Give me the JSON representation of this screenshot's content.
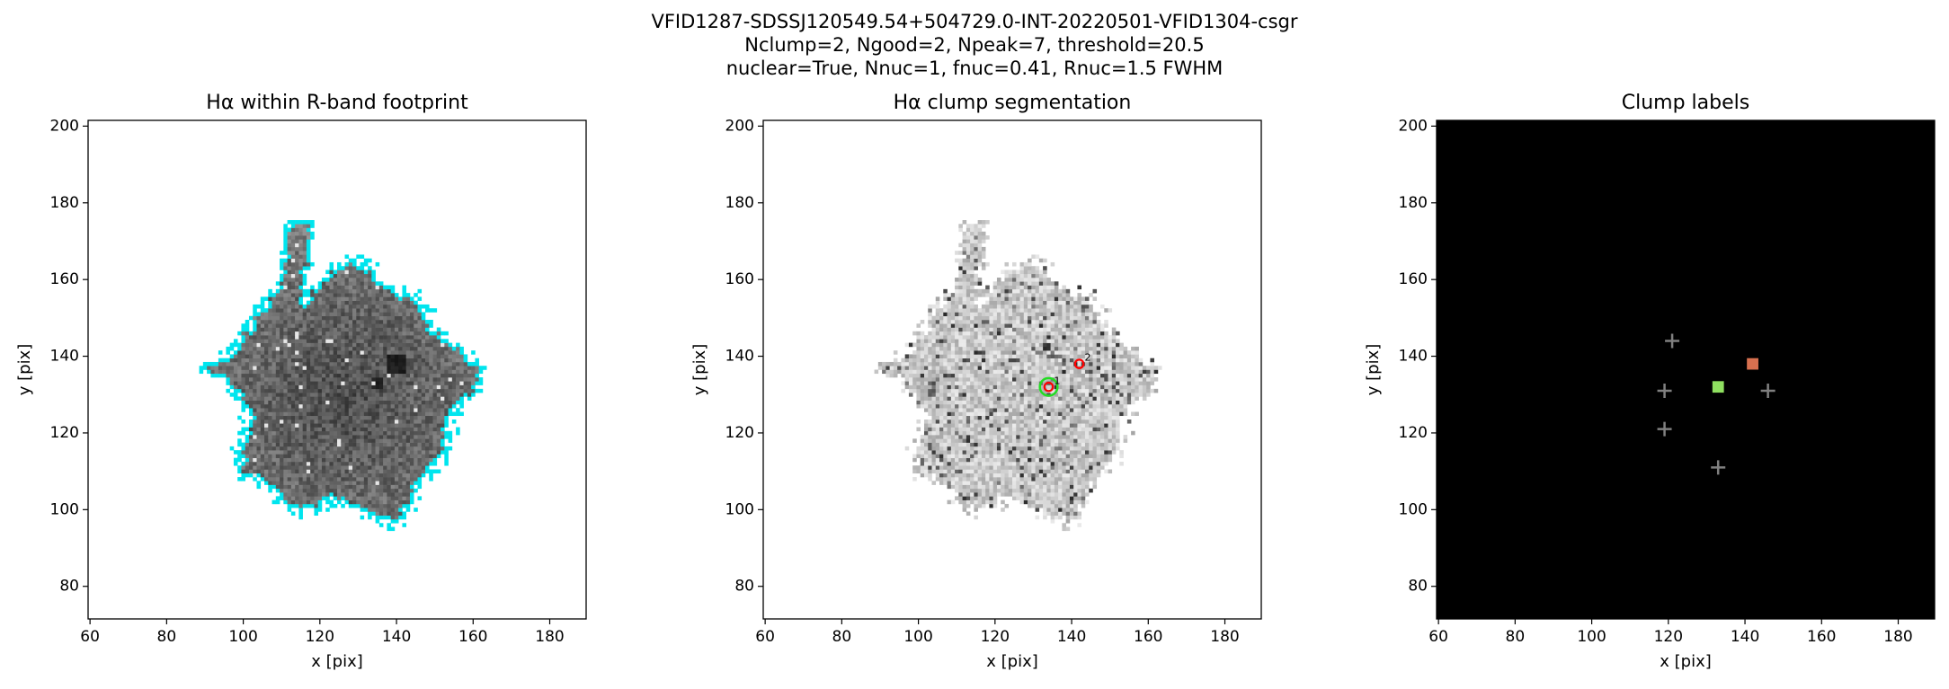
{
  "title": [
    "VFID1287-SDSSJ120549.54+504729.0-INT-20220501-VFID1304-csgr",
    "Nclump=2, Ngood=2, Npeak=7, threshold=20.5",
    "nuclear=True, Nnuc=1, fnuc=0.41, Rnuc=1.5 FWHM"
  ],
  "chart_data": [
    {
      "type": "image",
      "title": "Hα within R-band footprint",
      "xlabel": "x [pix]",
      "ylabel": "y [pix]",
      "xlim": [
        59.5,
        189.5
      ],
      "ylim": [
        71.5,
        201.5
      ],
      "xticks": [
        60,
        80,
        100,
        120,
        140,
        160,
        180
      ],
      "yticks": [
        80,
        100,
        120,
        140,
        160,
        180,
        200
      ],
      "background": "#ffffff",
      "tone": "dark",
      "contour_color": "#00e5ee"
    },
    {
      "type": "image",
      "title": "Hα clump segmentation",
      "xlabel": "x [pix]",
      "ylabel": "y [pix]",
      "xlim": [
        59.5,
        189.5
      ],
      "ylim": [
        71.5,
        201.5
      ],
      "xticks": [
        60,
        80,
        100,
        120,
        140,
        160,
        180
      ],
      "yticks": [
        80,
        100,
        120,
        140,
        160,
        180,
        200
      ],
      "background": "#ffffff",
      "tone": "light",
      "clumps": {
        "x": [
          134,
          142
        ],
        "y": [
          132,
          138
        ],
        "labels": [
          "1",
          "2"
        ],
        "color": "#ff0000",
        "nuclear_color": "#22dd22"
      }
    },
    {
      "type": "labels",
      "title": "Clump labels",
      "xlabel": "x [pix]",
      "ylabel": "y [pix]",
      "xlim": [
        59.5,
        189.5
      ],
      "ylim": [
        71.5,
        201.5
      ],
      "xticks": [
        60,
        80,
        100,
        120,
        140,
        160,
        180
      ],
      "yticks": [
        80,
        100,
        120,
        140,
        160,
        180,
        200
      ],
      "background": "#000000",
      "clumps": {
        "x": [
          133,
          142
        ],
        "y": [
          132,
          138
        ],
        "colors": [
          "#8fe060",
          "#d8704f"
        ]
      },
      "peaks": {
        "x": [
          121,
          119,
          119,
          133,
          146
        ],
        "y": [
          144,
          131,
          121,
          111,
          131
        ],
        "color": "#808080"
      }
    }
  ]
}
